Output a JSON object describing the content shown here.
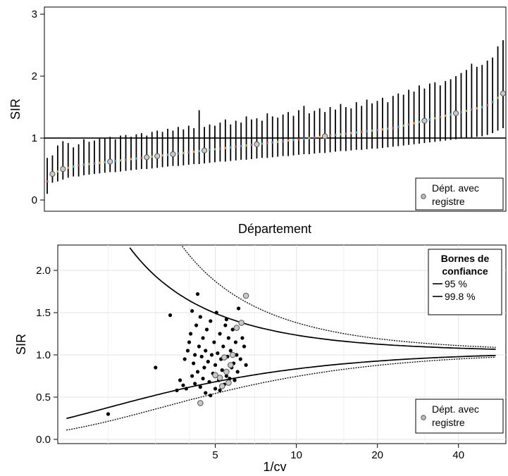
{
  "chart_data": [
    {
      "type": "scatter",
      "subtype": "caterpillar",
      "xlabel": "Département",
      "ylabel": "SIR",
      "ylim": [
        0,
        3
      ],
      "yticks": [
        0,
        1,
        2,
        3
      ],
      "reference_line": 1,
      "grid": false,
      "legend": {
        "position": "bottom-right",
        "entries": [
          {
            "symbol": "grey-open-circle",
            "label_line1": "Dépt. avec",
            "label_line2": "registre"
          }
        ]
      },
      "ranked_sir": [
        0.3,
        0.42,
        0.46,
        0.5,
        0.52,
        0.54,
        0.56,
        0.57,
        0.58,
        0.59,
        0.6,
        0.61,
        0.62,
        0.63,
        0.64,
        0.65,
        0.66,
        0.67,
        0.68,
        0.69,
        0.7,
        0.71,
        0.72,
        0.73,
        0.74,
        0.75,
        0.76,
        0.77,
        0.78,
        0.79,
        0.8,
        0.81,
        0.82,
        0.83,
        0.84,
        0.85,
        0.86,
        0.87,
        0.88,
        0.89,
        0.9,
        0.91,
        0.92,
        0.93,
        0.94,
        0.95,
        0.96,
        0.97,
        0.98,
        0.99,
        1.0,
        1.01,
        1.02,
        1.03,
        1.04,
        1.05,
        1.06,
        1.07,
        1.08,
        1.09,
        1.1,
        1.11,
        1.12,
        1.13,
        1.14,
        1.15,
        1.16,
        1.18,
        1.2,
        1.22,
        1.24,
        1.26,
        1.28,
        1.3,
        1.32,
        1.34,
        1.36,
        1.38,
        1.4,
        1.42,
        1.44,
        1.46,
        1.48,
        1.5,
        1.53,
        1.58,
        1.65,
        1.72
      ],
      "upper_ci": [
        0.68,
        0.72,
        0.88,
        0.95,
        0.92,
        0.85,
        0.9,
        0.98,
        0.94,
        0.96,
        0.99,
        1.0,
        1.02,
        0.98,
        1.04,
        1.05,
        1.02,
        1.06,
        1.08,
        1.04,
        1.1,
        1.12,
        1.1,
        1.15,
        1.12,
        1.18,
        1.14,
        1.2,
        1.16,
        1.45,
        1.18,
        1.22,
        1.2,
        1.25,
        1.3,
        1.22,
        1.28,
        1.25,
        1.35,
        1.3,
        1.32,
        1.28,
        1.4,
        1.35,
        1.33,
        1.38,
        1.42,
        1.36,
        1.45,
        1.52,
        1.4,
        1.44,
        1.48,
        1.42,
        1.5,
        1.46,
        1.55,
        1.5,
        1.48,
        1.58,
        1.52,
        1.62,
        1.56,
        1.6,
        1.65,
        1.58,
        1.68,
        1.72,
        1.7,
        1.78,
        1.75,
        1.85,
        1.8,
        1.88,
        1.9,
        1.85,
        1.92,
        1.95,
        2.0,
        2.05,
        2.1,
        2.2,
        2.15,
        2.18,
        2.25,
        2.3,
        2.48,
        2.58
      ],
      "lower_ci": [
        0.1,
        0.28,
        0.3,
        0.33,
        0.36,
        0.38,
        0.38,
        0.4,
        0.41,
        0.42,
        0.43,
        0.44,
        0.45,
        0.45,
        0.46,
        0.47,
        0.48,
        0.49,
        0.5,
        0.5,
        0.51,
        0.52,
        0.53,
        0.54,
        0.55,
        0.55,
        0.56,
        0.57,
        0.58,
        0.58,
        0.59,
        0.6,
        0.61,
        0.62,
        0.62,
        0.63,
        0.64,
        0.65,
        0.65,
        0.66,
        0.67,
        0.68,
        0.68,
        0.69,
        0.7,
        0.71,
        0.71,
        0.72,
        0.73,
        0.74,
        0.74,
        0.75,
        0.76,
        0.76,
        0.77,
        0.78,
        0.79,
        0.79,
        0.8,
        0.81,
        0.81,
        0.82,
        0.83,
        0.83,
        0.84,
        0.85,
        0.86,
        0.87,
        0.88,
        0.89,
        0.9,
        0.91,
        0.92,
        0.93,
        0.94,
        0.95,
        0.96,
        0.97,
        0.98,
        0.99,
        1.0,
        1.01,
        1.02,
        1.03,
        1.05,
        1.08,
        1.12,
        1.16
      ],
      "registry_ranks": [
        1,
        3,
        12,
        19,
        21,
        24,
        30,
        40,
        53,
        72,
        78,
        87
      ]
    },
    {
      "type": "scatter",
      "subtype": "funnel",
      "xlabel": "1/cv",
      "ylabel": "SIR",
      "xscale": "log",
      "xlim": [
        1.3,
        60
      ],
      "xticks": [
        5,
        10,
        20,
        40
      ],
      "ylim": [
        -0.05,
        2.3
      ],
      "yticks": [
        0.0,
        0.5,
        1.0,
        1.5,
        2.0
      ],
      "ytick_labels": [
        "0.0",
        "0.5",
        "1.0",
        "1.5",
        "2.0"
      ],
      "grid": true,
      "legends": [
        {
          "position": "top-right",
          "title_line1": "Bornes de",
          "title_line2": "confiance",
          "entries": [
            "95 %",
            "99.8 %"
          ]
        },
        {
          "position": "bottom-right",
          "entries": [
            {
              "symbol": "grey-open-circle",
              "label_line1": "Dépt. avec",
              "label_line2": "registre"
            }
          ]
        }
      ],
      "points": [
        [
          2.0,
          0.3
        ],
        [
          3.4,
          1.47
        ],
        [
          3.0,
          0.85
        ],
        [
          3.6,
          0.58
        ],
        [
          3.8,
          0.64
        ],
        [
          3.7,
          0.7
        ],
        [
          3.9,
          0.6
        ],
        [
          3.85,
          0.95
        ],
        [
          3.95,
          1.05
        ],
        [
          4.0,
          1.15
        ],
        [
          4.05,
          1.25
        ],
        [
          4.1,
          0.75
        ],
        [
          4.1,
          1.52
        ],
        [
          4.15,
          0.9
        ],
        [
          4.2,
          0.66
        ],
        [
          4.2,
          1.0
        ],
        [
          4.25,
          1.35
        ],
        [
          4.3,
          1.72
        ],
        [
          4.3,
          0.8
        ],
        [
          4.35,
          1.1
        ],
        [
          4.4,
          0.62
        ],
        [
          4.4,
          1.45
        ],
        [
          4.45,
          0.98
        ],
        [
          4.5,
          0.72
        ],
        [
          4.5,
          1.2
        ],
        [
          4.55,
          0.85
        ],
        [
          4.6,
          0.55
        ],
        [
          4.6,
          1.05
        ],
        [
          4.65,
          1.3
        ],
        [
          4.7,
          0.92
        ],
        [
          4.75,
          0.68
        ],
        [
          4.8,
          1.4
        ],
        [
          4.85,
          1.0
        ],
        [
          4.9,
          0.78
        ],
        [
          4.95,
          1.15
        ],
        [
          5.0,
          0.88
        ],
        [
          5.0,
          0.6
        ],
        [
          5.05,
          1.5
        ],
        [
          5.1,
          1.02
        ],
        [
          5.15,
          0.7
        ],
        [
          5.2,
          1.25
        ],
        [
          5.25,
          0.95
        ],
        [
          5.3,
          0.82
        ],
        [
          5.35,
          1.1
        ],
        [
          5.4,
          0.65
        ],
        [
          5.45,
          1.35
        ],
        [
          5.5,
          0.75
        ],
        [
          5.55,
          0.98
        ],
        [
          5.6,
          1.2
        ],
        [
          5.65,
          0.72
        ],
        [
          5.7,
          1.05
        ],
        [
          5.75,
          0.85
        ],
        [
          5.8,
          1.3
        ],
        [
          5.85,
          0.9
        ],
        [
          5.9,
          0.7
        ],
        [
          5.95,
          1.15
        ],
        [
          6.0,
          1.0
        ],
        [
          6.05,
          0.8
        ],
        [
          6.1,
          1.55
        ],
        [
          6.2,
          0.95
        ],
        [
          6.3,
          1.2
        ],
        [
          6.4,
          1.1
        ],
        [
          6.5,
          0.88
        ],
        [
          5.5,
          1.42
        ],
        [
          4.8,
          0.52
        ],
        [
          5.2,
          0.58
        ]
      ],
      "registry_points": [
        [
          4.4,
          0.43
        ],
        [
          5.3,
          0.63
        ],
        [
          5.6,
          0.67
        ],
        [
          5.2,
          0.73
        ],
        [
          5.0,
          0.76
        ],
        [
          5.5,
          0.8
        ],
        [
          5.7,
          0.88
        ],
        [
          5.4,
          0.97
        ],
        [
          6.0,
          1.32
        ],
        [
          6.25,
          1.38
        ],
        [
          6.5,
          1.7
        ],
        [
          5.8,
          1.0
        ]
      ]
    }
  ]
}
